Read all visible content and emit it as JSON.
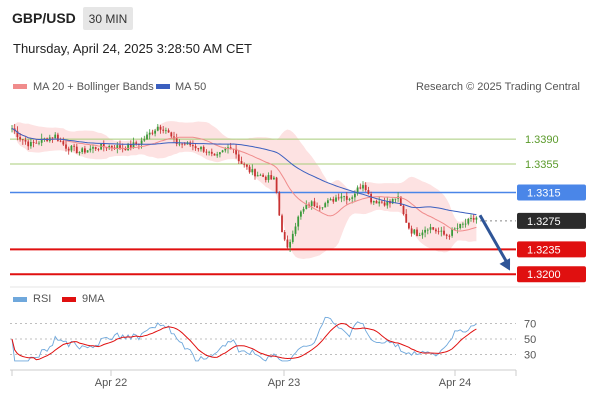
{
  "header": {
    "symbol": "GBP/USD",
    "timeframe": "30 MIN",
    "datetime": "Thursday, April 24, 2025 3:28:50 AM CET"
  },
  "legend": {
    "ma20_bb": "MA 20 + Bollinger Bands",
    "ma50": "MA 50",
    "copyright": "Research © 2025 Trading Central",
    "rsi": "RSI",
    "ma9": "9MA"
  },
  "colors": {
    "ma20": "#f08c8c",
    "bollinger_fill": "#fde2e2",
    "ma50": "#3b5fbf",
    "resistance": "#a8cc7a",
    "pivot": "#4a86e8",
    "support": "#e01010",
    "current": "#2b2b2b",
    "candle_up": "#3a9a3a",
    "candle_down": "#c83232",
    "rsi_line": "#6fa8dc",
    "rsi_ma": "#e01010",
    "arrow": "#2f5597"
  },
  "chart_data": [
    {
      "type": "candlestick",
      "ylim": [
        1.3175,
        1.3445
      ],
      "x_labels": [
        "Apr 22",
        "Apr 23",
        "Apr 24"
      ],
      "levels": [
        {
          "value": 1.339,
          "label": "1.3390",
          "kind": "resistance"
        },
        {
          "value": 1.3355,
          "label": "1.3355",
          "kind": "resistance"
        },
        {
          "value": 1.3315,
          "label": "1.3315",
          "kind": "pivot"
        },
        {
          "value": 1.3275,
          "label": "1.3275",
          "kind": "current"
        },
        {
          "value": 1.3235,
          "label": "1.3235",
          "kind": "support"
        },
        {
          "value": 1.32,
          "label": "1.3200",
          "kind": "support"
        }
      ],
      "forecast_arrow": {
        "from": 1.3283,
        "to": 1.3205,
        "direction": "down"
      }
    },
    {
      "type": "line",
      "series": [
        "RSI",
        "9MA"
      ],
      "y_ticks": [
        "70",
        "50",
        "30"
      ],
      "ylim": [
        18,
        82
      ]
    }
  ]
}
